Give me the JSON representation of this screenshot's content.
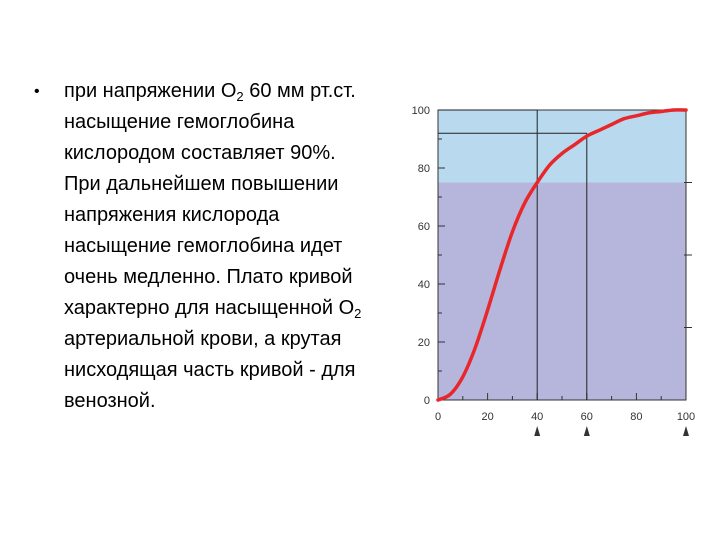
{
  "slide": {
    "bullet": "•",
    "segments": [
      {
        "text": "при напряжении O"
      },
      {
        "sub": "2"
      },
      {
        "text": " 60 мм рт.ст. насыщение гемоглобина кислородом составляет 90%. При дальнейшем повышении напряжения кислорода насыщение гемоглобина идет очень медленно. Плато кривой характерно для насыщенной O"
      },
      {
        "sub": "2"
      },
      {
        "text": " артериальной крови, а крутая нисходящая часть кривой - для венозной."
      }
    ]
  },
  "chart_data": {
    "type": "line",
    "x": [
      0,
      5,
      10,
      15,
      20,
      25,
      30,
      35,
      40,
      45,
      50,
      55,
      60,
      65,
      70,
      75,
      80,
      85,
      90,
      95,
      100
    ],
    "series": [
      {
        "values": [
          0,
          2,
          8,
          18,
          31,
          45,
          58,
          68,
          75,
          81,
          85,
          88,
          91,
          93,
          95,
          97,
          98,
          99,
          99.5,
          100,
          100
        ]
      }
    ],
    "xlim": [
      0,
      100
    ],
    "ylim": [
      0,
      100
    ],
    "xticks": [
      0,
      20,
      40,
      60,
      80,
      100
    ],
    "yticks": [
      0,
      20,
      40,
      60,
      80,
      100
    ],
    "bands": [
      {
        "from": 75,
        "to": 100,
        "color": "#b9d9ef"
      },
      {
        "from": 0,
        "to": 75,
        "color": "#b6b6dc"
      }
    ],
    "reference_lines": [
      {
        "x": 40,
        "y": 100
      },
      {
        "x": 60,
        "y": 92
      }
    ],
    "arrows_at": [
      40,
      60,
      100
    ],
    "colors": {
      "curve": "#e8272b",
      "axis": "#333333",
      "refline": "#222222"
    }
  }
}
